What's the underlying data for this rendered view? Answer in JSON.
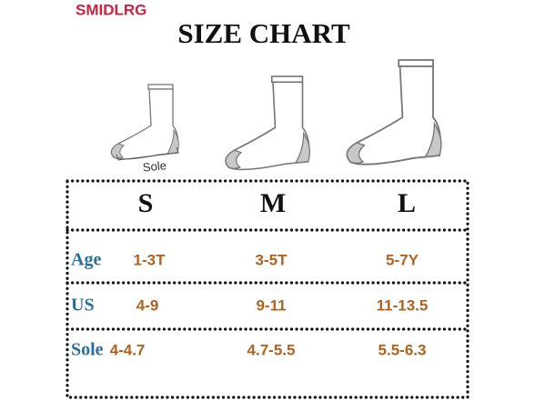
{
  "brand": "SMIDLRG",
  "title": "SIZE CHART",
  "sole_label": "Sole",
  "table": {
    "columns": [
      "S",
      "M",
      "L"
    ],
    "rows": [
      {
        "label": "Age",
        "values": [
          "1-3T",
          "3-5T",
          "5-7Y"
        ]
      },
      {
        "label": "US",
        "values": [
          "4-9",
          "9-11",
          "11-13.5"
        ]
      },
      {
        "label": "Sole",
        "values": [
          "4-4.7",
          "4.7-5.5",
          "5.5-6.3"
        ]
      }
    ]
  }
}
